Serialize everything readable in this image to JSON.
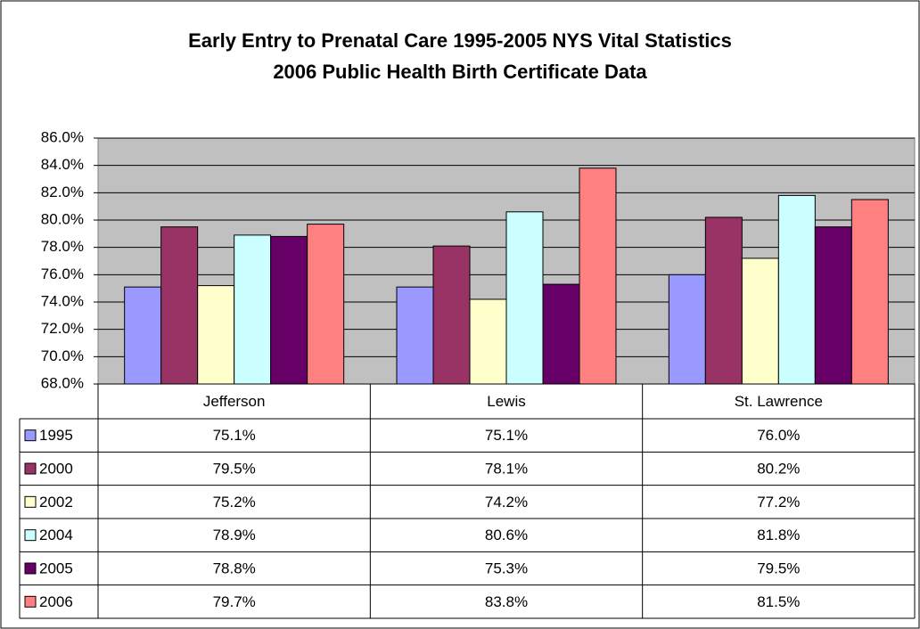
{
  "chart_data": {
    "type": "bar",
    "title": "Early Entry to Prenatal Care 1995-2005 NYS Vital Statistics",
    "subtitle": "2006 Public Health Birth Certificate Data",
    "categories": [
      "Jefferson",
      "Lewis",
      "St. Lawrence"
    ],
    "series": [
      {
        "name": "1995",
        "color": "#9999ff",
        "values": [
          75.1,
          75.1,
          76.0
        ],
        "value_labels": [
          "75.1%",
          "75.1%",
          "76.0%"
        ]
      },
      {
        "name": "2000",
        "color": "#993366",
        "values": [
          79.5,
          78.1,
          80.2
        ],
        "value_labels": [
          "79.5%",
          "78.1%",
          "80.2%"
        ]
      },
      {
        "name": "2002",
        "color": "#ffffcc",
        "values": [
          75.2,
          74.2,
          77.2
        ],
        "value_labels": [
          "75.2%",
          "74.2%",
          "77.2%"
        ]
      },
      {
        "name": "2004",
        "color": "#ccffff",
        "values": [
          78.9,
          80.6,
          81.8
        ],
        "value_labels": [
          "78.9%",
          "80.6%",
          "81.8%"
        ]
      },
      {
        "name": "2005",
        "color": "#660066",
        "values": [
          78.8,
          75.3,
          79.5
        ],
        "value_labels": [
          "78.8%",
          "75.3%",
          "79.5%"
        ]
      },
      {
        "name": "2006",
        "color": "#ff8080",
        "values": [
          79.7,
          83.8,
          81.5
        ],
        "value_labels": [
          "79.7%",
          "83.8%",
          "81.5%"
        ]
      }
    ],
    "ylim": [
      68,
      86
    ],
    "yticks": [
      {
        "value": 68,
        "label": "68.0%"
      },
      {
        "value": 70,
        "label": "70.0%"
      },
      {
        "value": 72,
        "label": "72.0%"
      },
      {
        "value": 74,
        "label": "74.0%"
      },
      {
        "value": 76,
        "label": "76.0%"
      },
      {
        "value": 78,
        "label": "78.0%"
      },
      {
        "value": 80,
        "label": "80.0%"
      },
      {
        "value": 82,
        "label": "82.0%"
      },
      {
        "value": 84,
        "label": "84.0%"
      },
      {
        "value": 86,
        "label": "86.0%"
      }
    ],
    "grid": true,
    "plot_background": "#c0c0c0"
  }
}
